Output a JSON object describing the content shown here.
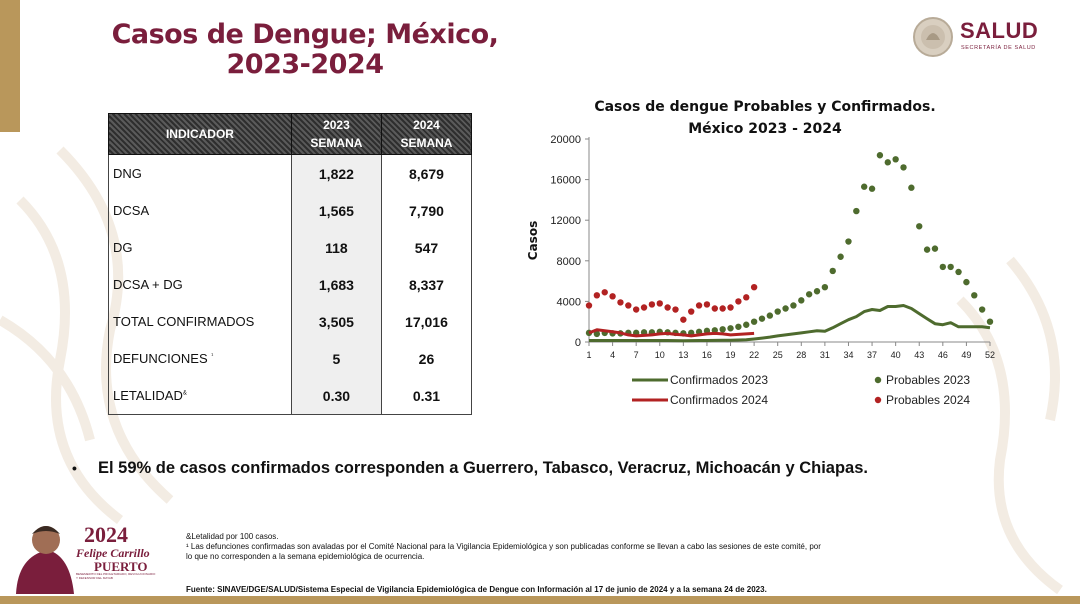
{
  "header": {
    "title_line1": "Casos de Dengue; México,",
    "title_line2": "2023-2024",
    "logo_text": "SALUD",
    "logo_sub": "SECRETARÍA DE SALUD"
  },
  "table": {
    "headers": {
      "indicador": "INDICADOR",
      "y2023": "2023",
      "y2024": "2024",
      "semana": "SEMANA"
    },
    "rows": [
      {
        "label": "DNG",
        "v2023": "1,822",
        "v2024": "8,679"
      },
      {
        "label": "DCSA",
        "v2023": "1,565",
        "v2024": "7,790"
      },
      {
        "label": "DG",
        "v2023": "118",
        "v2024": "547"
      },
      {
        "label": "DCSA + DG",
        "v2023": "1,683",
        "v2024": "8,337"
      },
      {
        "label": "TOTAL CONFIRMADOS",
        "v2023": "3,505",
        "v2024": "17,016"
      },
      {
        "label": "DEFUNCIONES",
        "sup": "¹",
        "v2023": "5",
        "v2024": "26"
      },
      {
        "label": "LETALIDAD",
        "sup": "&",
        "v2023": "0.30",
        "v2024": "0.31"
      }
    ]
  },
  "chart_data": {
    "type": "line",
    "title_line1": "Casos de dengue Probables y Confirmados.",
    "title_line2": "México 2023 - 2024",
    "ylabel": "Casos",
    "ylim": [
      0,
      20000
    ],
    "yticks": [
      "0",
      "4000",
      "8000",
      "12000",
      "16000",
      "20000"
    ],
    "xlim": [
      1,
      52
    ],
    "xticks": [
      "1",
      "4",
      "7",
      "10",
      "13",
      "16",
      "19",
      "22",
      "25",
      "28",
      "31",
      "34",
      "37",
      "40",
      "43",
      "46",
      "49",
      "52"
    ],
    "colors": {
      "y2023": "#4e6b2e",
      "y2024": "#b22222"
    },
    "series": [
      {
        "name": "Confirmados 2023",
        "style": "line",
        "x": [
          1,
          2,
          3,
          4,
          5,
          6,
          7,
          8,
          9,
          10,
          11,
          12,
          13,
          14,
          15,
          16,
          17,
          18,
          19,
          20,
          21,
          22,
          23,
          24,
          25,
          26,
          27,
          28,
          29,
          30,
          31,
          32,
          33,
          34,
          35,
          36,
          37,
          38,
          39,
          40,
          41,
          42,
          43,
          44,
          45,
          46,
          47,
          48,
          49,
          50,
          51,
          52
        ],
        "values": [
          150,
          150,
          150,
          150,
          150,
          150,
          150,
          150,
          150,
          150,
          150,
          140,
          130,
          140,
          150,
          150,
          160,
          170,
          180,
          200,
          220,
          300,
          380,
          480,
          600,
          700,
          800,
          900,
          1000,
          1100,
          1050,
          1400,
          1800,
          2200,
          2500,
          3000,
          3200,
          3100,
          3500,
          3500,
          3600,
          3300,
          2800,
          2300,
          1800,
          1700,
          1900,
          1500,
          1500,
          1500,
          1500,
          1400
        ]
      },
      {
        "name": "Probables 2023",
        "style": "dots",
        "x": [
          1,
          2,
          3,
          4,
          5,
          6,
          7,
          8,
          9,
          10,
          11,
          12,
          13,
          14,
          15,
          16,
          17,
          18,
          19,
          20,
          21,
          22,
          23,
          24,
          25,
          26,
          27,
          28,
          29,
          30,
          31,
          32,
          33,
          34,
          35,
          36,
          37,
          38,
          39,
          40,
          41,
          42,
          43,
          44,
          45,
          46,
          47,
          48,
          49,
          50,
          51,
          52
        ],
        "values": [
          900,
          800,
          900,
          850,
          850,
          900,
          900,
          950,
          950,
          1000,
          950,
          900,
          850,
          900,
          1000,
          1100,
          1150,
          1250,
          1350,
          1500,
          1700,
          2000,
          2300,
          2600,
          3000,
          3300,
          3600,
          4100,
          4700,
          5000,
          5400,
          7000,
          8400,
          9900,
          12900,
          15300,
          15100,
          18400,
          17700,
          18000,
          17200,
          15200,
          11400,
          9100,
          9200,
          7400,
          7400,
          6900,
          5900,
          4600,
          3200,
          2000
        ]
      },
      {
        "name": "Confirmados 2024",
        "style": "line",
        "x": [
          1,
          2,
          3,
          4,
          5,
          6,
          7,
          8,
          9,
          10,
          11,
          12,
          13,
          14,
          15,
          16,
          17,
          18,
          19,
          20,
          21,
          22
        ],
        "values": [
          900,
          1200,
          1100,
          1000,
          900,
          700,
          600,
          650,
          700,
          800,
          850,
          750,
          700,
          600,
          700,
          800,
          850,
          800,
          700,
          750,
          800,
          850
        ]
      },
      {
        "name": "Probables 2024",
        "style": "dots",
        "x": [
          1,
          2,
          3,
          4,
          5,
          6,
          7,
          8,
          9,
          10,
          11,
          12,
          13,
          14,
          15,
          16,
          17,
          18,
          19,
          20,
          21,
          22
        ],
        "values": [
          3600,
          4600,
          4900,
          4500,
          3900,
          3600,
          3200,
          3400,
          3700,
          3800,
          3400,
          3200,
          2200,
          3000,
          3600,
          3700,
          3300,
          3300,
          3400,
          4000,
          4400,
          5400
        ]
      }
    ]
  },
  "bullet": "El 59% de casos confirmados corresponden a Guerrero, Tabasco, Veracruz, Michoacán y Chiapas.",
  "bullet_symbol": "•",
  "footer": {
    "logo_year": "2024",
    "logo_name1": "Felipe Carrillo",
    "logo_name2": "PUERTO",
    "logo_motto": "BENEMÉRITO DEL PROLETARIADO, REVOLUCIONARIO Y DEFENSOR DEL MAYAB",
    "note1": "&Letalidad por 100 casos.",
    "note2": "¹ Las defunciones confirmadas son avaladas por el Comité Nacional para la Vigilancia Epidemiológica y son publicadas conforme se llevan a cabo las sesiones de este comité, por",
    "note3": "lo que no corresponden a la semana epidemiológica de ocurrencia.",
    "source": "Fuente: SINAVE/DGE/SALUD/Sistema Especial de Vigilancia Epidemiológica de Dengue con Información al 17 de junio de 2024 y a la semana 24 de 2023."
  }
}
